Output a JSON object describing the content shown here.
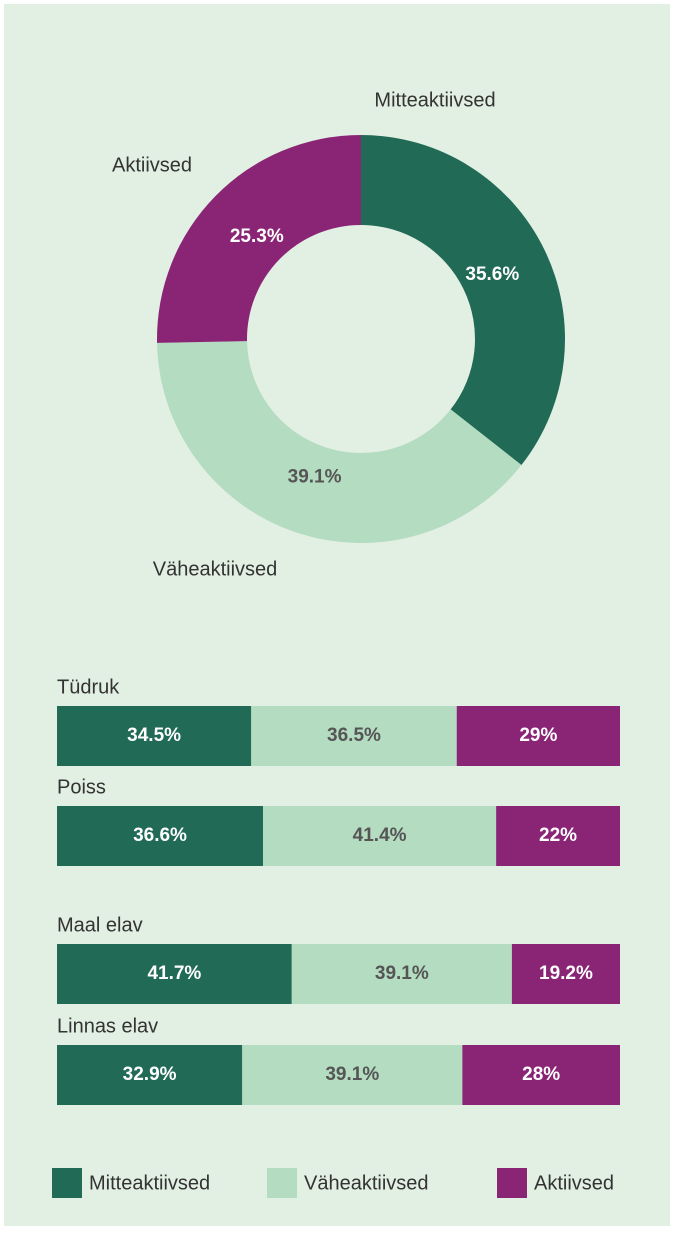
{
  "chart_data": [
    {
      "type": "pie",
      "donut": true,
      "categories": [
        "Mitteaktiivsed",
        "Väheaktiivsed",
        "Aktiivsed"
      ],
      "values": [
        35.6,
        39.1,
        25.3
      ],
      "value_labels": [
        "35.6%",
        "39.1%",
        "25.3%"
      ],
      "colors": [
        "#206a56",
        "#b3dcc1",
        "#8a2576"
      ]
    },
    {
      "type": "bar",
      "orientation": "horizontal",
      "stacked": true,
      "categories": [
        "Tüdruk",
        "Poiss",
        "Maal elav",
        "Linnas elav"
      ],
      "series": [
        {
          "name": "Mitteaktiivsed",
          "color": "#206a56",
          "values": [
            34.5,
            36.6,
            41.7,
            32.9
          ],
          "value_labels": [
            "34.5%",
            "36.6%",
            "41.7%",
            "32.9%"
          ]
        },
        {
          "name": "Väheaktiivsed",
          "color": "#b3dcc1",
          "values": [
            36.5,
            41.4,
            39.1,
            39.1
          ],
          "value_labels": [
            "36.5%",
            "41.4%",
            "39.1%",
            "39.1%"
          ]
        },
        {
          "name": "Aktiivsed",
          "color": "#8a2576",
          "values": [
            29,
            22,
            19.2,
            28
          ],
          "value_labels": [
            "29%",
            "22%",
            "19.2%",
            "28%"
          ]
        }
      ]
    }
  ]
}
